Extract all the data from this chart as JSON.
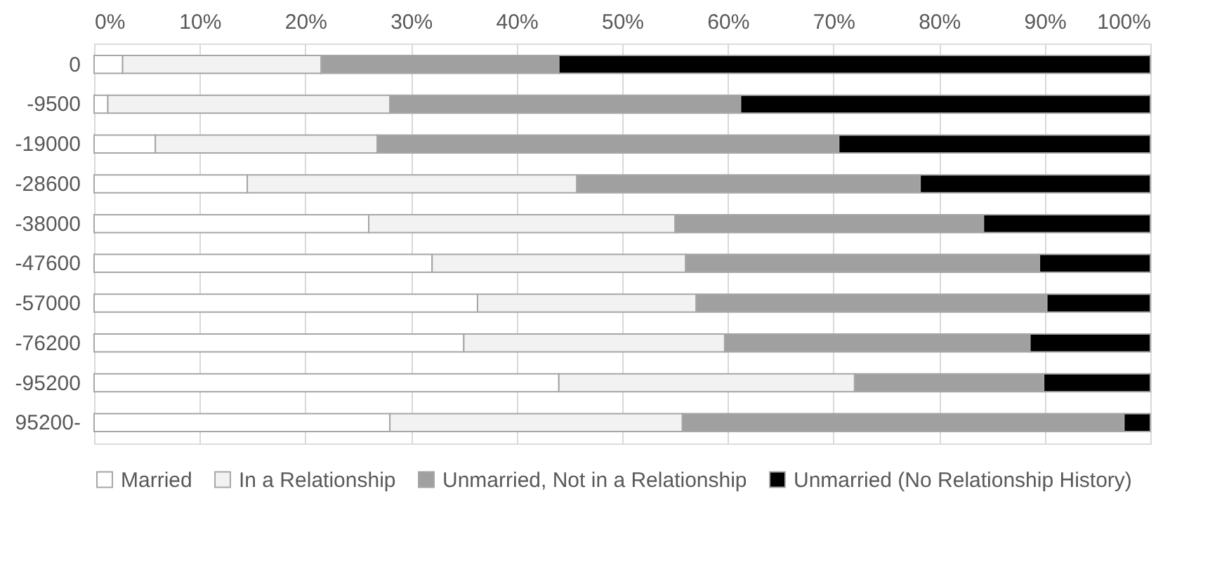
{
  "chart_data": {
    "type": "bar",
    "orientation": "horizontal",
    "stacked": true,
    "categories": [
      "0",
      "-9500",
      "-19000",
      "-28600",
      "-38000",
      "-47600",
      "-57000",
      "-76200",
      "-95200",
      "95200-"
    ],
    "series": [
      {
        "name": "Married",
        "color": "#ffffff",
        "values": [
          2.7,
          1.3,
          5.8,
          14.5,
          26,
          32,
          36.3,
          35,
          44,
          28
        ]
      },
      {
        "name": "In a Relationship",
        "color": "#f2f2f2",
        "values": [
          18.8,
          26.7,
          21.0,
          31.2,
          29,
          24,
          20.7,
          24.7,
          28,
          27.7
        ]
      },
      {
        "name": "Unmarried, Not in a Relationship",
        "color": "#a0a0a0",
        "values": [
          22.5,
          33.2,
          43.7,
          32.5,
          29.2,
          33.5,
          33.2,
          28.9,
          17.9,
          41.8
        ]
      },
      {
        "name": "Unmarried (No Relationship History)",
        "color": "#000000",
        "values": [
          56,
          38.8,
          29.5,
          21.8,
          15.8,
          10.5,
          9.8,
          11.4,
          10.1,
          2.5
        ]
      }
    ],
    "xlim": [
      0,
      100
    ],
    "xticks": [
      {
        "value": 0,
        "label": "0%"
      },
      {
        "value": 10,
        "label": "10%"
      },
      {
        "value": 20,
        "label": "20%"
      },
      {
        "value": 30,
        "label": "30%"
      },
      {
        "value": 40,
        "label": "40%"
      },
      {
        "value": 50,
        "label": "50%"
      },
      {
        "value": 60,
        "label": "60%"
      },
      {
        "value": 70,
        "label": "70%"
      },
      {
        "value": 80,
        "label": "80%"
      },
      {
        "value": 90,
        "label": "90%"
      },
      {
        "value": 100,
        "label": "100%"
      }
    ],
    "grid": "x",
    "legend": "bottom"
  }
}
